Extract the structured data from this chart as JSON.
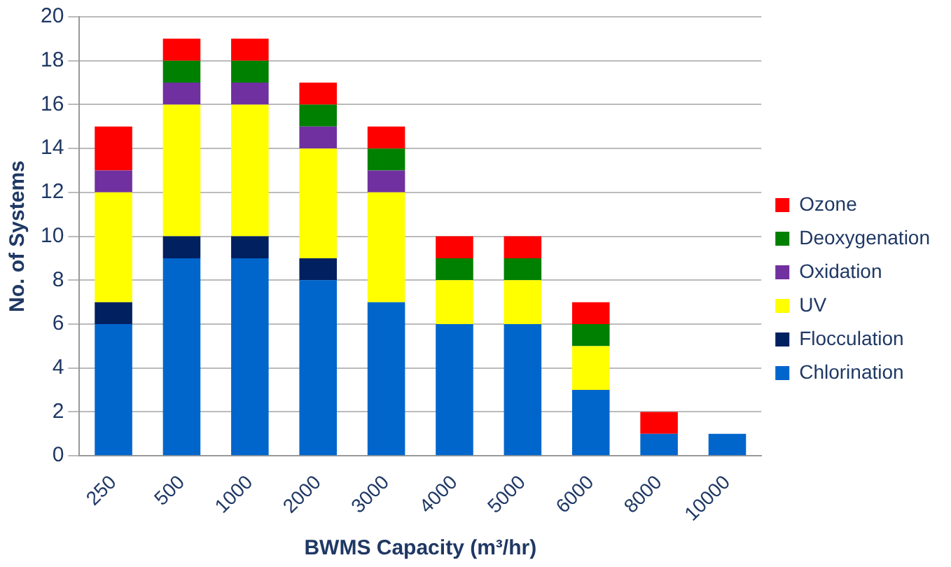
{
  "chart_data": {
    "type": "bar",
    "stacked": true,
    "xlabel": "BWMS Capacity (m³/hr)",
    "ylabel": "No. of Systems",
    "categories": [
      "250",
      "500",
      "1000",
      "2000",
      "3000",
      "4000",
      "5000",
      "6000",
      "8000",
      "10000"
    ],
    "series": [
      {
        "name": "Chlorination",
        "color": "#0066cc",
        "values": [
          6,
          9,
          9,
          8,
          7,
          6,
          6,
          3,
          1,
          1
        ]
      },
      {
        "name": "Flocculation",
        "color": "#002060",
        "values": [
          1,
          1,
          1,
          1,
          0,
          0,
          0,
          0,
          0,
          0
        ]
      },
      {
        "name": "UV",
        "color": "#ffff00",
        "values": [
          5,
          6,
          6,
          5,
          5,
          2,
          2,
          2,
          0,
          0
        ]
      },
      {
        "name": "Oxidation",
        "color": "#7030a0",
        "values": [
          1,
          1,
          1,
          1,
          1,
          0,
          0,
          0,
          0,
          0
        ]
      },
      {
        "name": "Deoxygenation",
        "color": "#008000",
        "values": [
          0,
          1,
          1,
          1,
          1,
          1,
          1,
          1,
          0,
          0
        ]
      },
      {
        "name": "Ozone",
        "color": "#ff0000",
        "values": [
          2,
          1,
          1,
          1,
          1,
          1,
          1,
          1,
          1,
          0
        ]
      }
    ],
    "ylim": [
      0,
      20
    ],
    "yticks": [
      0,
      2,
      4,
      6,
      8,
      10,
      12,
      14,
      16,
      18,
      20
    ],
    "grid": "y",
    "legend": "right"
  }
}
